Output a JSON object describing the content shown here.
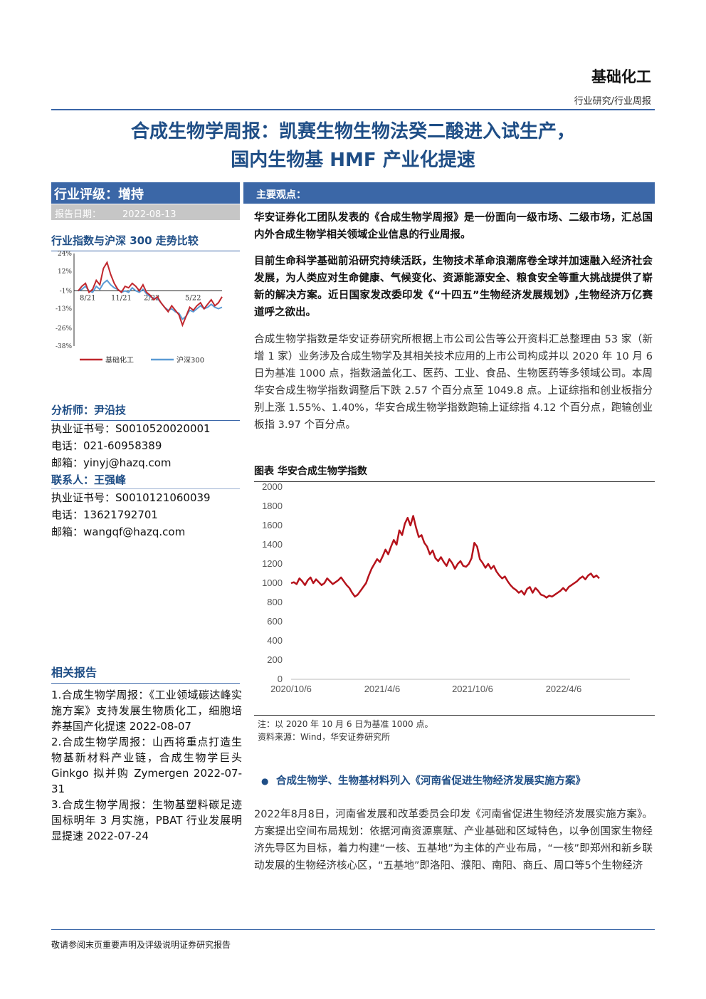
{
  "header": {
    "brand": "基础化工",
    "report_type": "行业研究/行业周报"
  },
  "title": {
    "line1": "合成生物学周报：凯赛生物生物法癸二酸进入试生产，",
    "line2": "国内生物基 HMF 产业化提速"
  },
  "sidebar": {
    "rating_label": "行业评级：增持",
    "date_label": "报告日期：",
    "date_value": "2022-08-13",
    "chart_title": "行业指数与沪深 300 走势比较",
    "analyst_heading": "分析师：尹沿技",
    "analyst": {
      "license": "执业证书号：S0010520020001",
      "phone": "电话：021-60958389",
      "email": "邮箱：yinyj@hazq.com"
    },
    "contact_heading": "联系人：王强峰",
    "contact": {
      "license": "执业证书号：S0010121060039",
      "phone": "电话：13621792701",
      "email": "邮箱：wangqf@hazq.com"
    },
    "related_heading": "相关报告",
    "related": [
      "1.合成生物学周报：《工业领域碳达峰实施方案》支持发展生物质化工，细胞培养基国产化提速 2022-08-07",
      "2.合成生物学周报：山西将重点打造生物基新材料产业链，合成生物学巨头 Ginkgo 拟并购 Zymergen 2022-07-31",
      "3.合成生物学周报：生物基塑料碳足迹国标明年 3 月实施，PBAT 行业发展明显提速 2022-07-24"
    ]
  },
  "main": {
    "views_label": "主要观点：",
    "para1": "华安证券化工团队发表的《合成生物学周报》是一份面向一级市场、二级市场，汇总国内外合成生物学相关领域企业信息的行业周报。",
    "para2": "目前生命科学基础前沿研究持续活跃，生物技术革命浪潮席卷全球并加速融入经济社会发展，为人类应对生命健康、气候变化、资源能源安全、粮食安全等重大挑战提供了崭新的解决方案。近日国家发改委印发《“十四五”生物经济发展规划》,生物经济万亿赛道呼之欲出。",
    "para3": "合成生物学指数是华安证券研究所根据上市公司公告等公开资料汇总整理由 53 家（新增 1 家）业务涉及合成生物学及其相关技术应用的上市公司构成并以 2020 年 10 月 6 日为基准 1000 点，指数涵盖化工、医药、工业、食品、生物医药等多领域公司。本周华安合成生物学指数调整后下跌 2.57 个百分点至 1049.8 点。上证综指和创业板指分别上涨 1.55%、1.40%，华安合成生物学指数跑输上证综指 4.12 个百分点，跑输创业板指 3.97 个百分点。",
    "figure_title": "图表 华安合成生物学指数",
    "figure_note": "注：以 2020 年 10 月 6 日为基准 1000 点。",
    "figure_source": "资料来源：Wind，华安证券研究所",
    "bullet_title": "合成生物学、生物基材料列入《河南省促进生物经济发展实施方案》",
    "bullet_body": "2022年8月8日，河南省发展和改革委员会印发《河南省促进生物经济发展实施方案》。方案提出空间布局规划：依据河南资源禀赋、产业基础和区域特色，以争创国家生物经济先导区为目标，着力构建“一核、五基地”为主体的产业布局，“一核”即郑州和新乡联动发展的生物经济核心区，“五基地”即洛阳、濮阳、南阳、商丘、周口等5个生物经济"
  },
  "footer": {
    "text": "敬请参阅末页重要声明及评级说明证券研究报告"
  },
  "colors": {
    "accent": "#3b67a7",
    "title": "#1f4e86",
    "series_industry": "#c0272d",
    "series_hs300": "#5b9bd5"
  },
  "chart_data": [
    {
      "type": "line",
      "title": "行业指数与沪深 300 走势比较",
      "x_ticks": [
        "8/21",
        "11/21",
        "2/22",
        "5/22"
      ],
      "y_ticks": [
        "24%",
        "12%",
        "-1%",
        "-13%",
        "-26%",
        "-38%"
      ],
      "ylim": [
        -38,
        24
      ],
      "legend_position": "bottom",
      "series": [
        {
          "name": "基础化工",
          "color": "#c0272d",
          "values": [
            -1,
            2,
            4,
            -2,
            0,
            6,
            3,
            14,
            18,
            10,
            4,
            0,
            -2,
            2,
            1,
            4,
            2,
            -1,
            3,
            -2,
            -4,
            -7,
            -5,
            -9,
            -12,
            -15,
            -11,
            -14,
            -17,
            -24,
            -18,
            -12,
            -14,
            -11,
            -9,
            -13,
            -10,
            -7,
            -11,
            -9,
            -5
          ]
        },
        {
          "name": "沪深300",
          "color": "#5b9bd5",
          "values": [
            -1,
            0,
            2,
            -1,
            -2,
            2,
            0,
            4,
            6,
            3,
            1,
            0,
            -2,
            -1,
            -2,
            1,
            -1,
            -2,
            0,
            -3,
            -5,
            -6,
            -6,
            -9,
            -12,
            -14,
            -13,
            -15,
            -16,
            -20,
            -18,
            -14,
            -15,
            -13,
            -11,
            -13,
            -12,
            -10,
            -12,
            -13,
            -12
          ]
        }
      ]
    },
    {
      "type": "line",
      "title": "图表 华安合成生物学指数",
      "x_ticks": [
        "2020/10/6",
        "2021/4/6",
        "2021/10/6",
        "2022/4/6"
      ],
      "y_ticks": [
        0,
        200,
        400,
        600,
        800,
        1000,
        1200,
        1400,
        1600,
        1800,
        2000
      ],
      "ylim": [
        0,
        2000
      ],
      "grid": false,
      "series": [
        {
          "values": [
            1000,
            1010,
            990,
            1050,
            1020,
            980,
            1030,
            1060,
            1000,
            1040,
            1010,
            980,
            1000,
            1050,
            1020,
            990,
            1010,
            1030,
            1060,
            1020,
            980,
            950,
            900,
            860,
            880,
            920,
            960,
            1000,
            1080,
            1150,
            1200,
            1250,
            1220,
            1280,
            1350,
            1300,
            1380,
            1450,
            1400,
            1550,
            1500,
            1620,
            1680,
            1600,
            1700,
            1580,
            1480,
            1500,
            1420,
            1380,
            1300,
            1340,
            1260,
            1230,
            1270,
            1220,
            1180,
            1250,
            1210,
            1150,
            1200,
            1230,
            1180,
            1170,
            1200,
            1260,
            1420,
            1380,
            1250,
            1210,
            1160,
            1200,
            1150,
            1180,
            1120,
            1080,
            1050,
            1070,
            1020,
            980,
            950,
            930,
            900,
            920,
            880,
            940,
            960,
            900,
            950,
            920,
            880,
            870,
            850,
            870,
            860,
            880,
            900,
            920,
            950,
            920,
            960,
            980,
            1000,
            1020,
            1050,
            1070,
            1040,
            1080,
            1100,
            1060,
            1080,
            1050
          ]
        }
      ]
    }
  ]
}
